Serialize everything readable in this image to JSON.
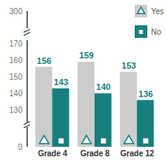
{
  "chart_data": {
    "type": "bar",
    "categories": [
      "Grade 4",
      "Grade 8",
      "Grade 12"
    ],
    "series": [
      {
        "name": "Yes",
        "color": "#cccccc",
        "marker": "triangle",
        "values": [
          156,
          159,
          153
        ]
      },
      {
        "name": "No",
        "color": "#17807e",
        "marker": "square",
        "values": [
          143,
          140,
          136
        ]
      }
    ],
    "ylim": [
      0,
      300
    ],
    "yticks": [
      0,
      130,
      140,
      150,
      160,
      170,
      300
    ],
    "data_labels": true,
    "legend": "top-right",
    "grid": false
  }
}
